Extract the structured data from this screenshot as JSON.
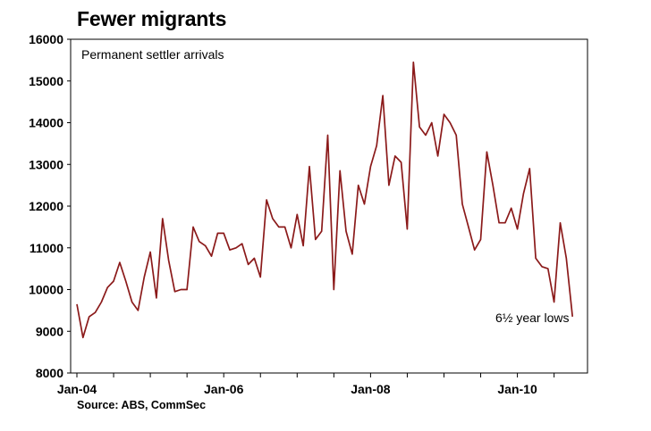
{
  "chart_data": {
    "type": "line",
    "title": "Fewer migrants",
    "subtitle": "Permanent settler arrivals",
    "annotation": "6½ year lows",
    "source": "Source: ABS, CommSec",
    "xlabel": "",
    "ylabel": "",
    "ylim": [
      8000,
      16000
    ],
    "yticks": [
      8000,
      9000,
      10000,
      11000,
      12000,
      13000,
      14000,
      15000,
      16000
    ],
    "xticks": [
      "Jan-04",
      "Jan-06",
      "Jan-08",
      "Jan-10"
    ],
    "xrange": [
      "2004-01",
      "2010-11"
    ],
    "grid": false,
    "line_color": "#8b1a1a",
    "series": [
      {
        "x": [
          "2004-01",
          "2004-02",
          "2004-03",
          "2004-04",
          "2004-05",
          "2004-06",
          "2004-07",
          "2004-08",
          "2004-09",
          "2004-10",
          "2004-11",
          "2004-12",
          "2005-01",
          "2005-02",
          "2005-03",
          "2005-04",
          "2005-05",
          "2005-06",
          "2005-07",
          "2005-08",
          "2005-09",
          "2005-10",
          "2005-11",
          "2005-12",
          "2006-01",
          "2006-02",
          "2006-03",
          "2006-04",
          "2006-05",
          "2006-06",
          "2006-07",
          "2006-08",
          "2006-09",
          "2006-10",
          "2006-11",
          "2006-12",
          "2007-01",
          "2007-02",
          "2007-03",
          "2007-04",
          "2007-05",
          "2007-06",
          "2007-07",
          "2007-08",
          "2007-09",
          "2007-10",
          "2007-11",
          "2007-12",
          "2008-01",
          "2008-02",
          "2008-03",
          "2008-04",
          "2008-05",
          "2008-06",
          "2008-07",
          "2008-08",
          "2008-09",
          "2008-10",
          "2008-11",
          "2008-12",
          "2009-01",
          "2009-02",
          "2009-03",
          "2009-04",
          "2009-05",
          "2009-06",
          "2009-07",
          "2009-08",
          "2009-09",
          "2009-10",
          "2009-11",
          "2009-12",
          "2010-01",
          "2010-02",
          "2010-03",
          "2010-04",
          "2010-05",
          "2010-06",
          "2010-07",
          "2010-08",
          "2010-09",
          "2010-10",
          "2010-11"
        ],
        "values": [
          9650,
          8850,
          9350,
          9450,
          9700,
          10050,
          10200,
          10650,
          10200,
          9700,
          9500,
          10300,
          10900,
          9800,
          11700,
          10700,
          9950,
          10000,
          10000,
          11500,
          11150,
          11050,
          10800,
          11350,
          11350,
          10950,
          11000,
          11100,
          10600,
          10750,
          10300,
          12150,
          11700,
          11500,
          11500,
          11000,
          11800,
          11050,
          12950,
          11200,
          11400,
          13700,
          10000,
          12850,
          11400,
          10850,
          12500,
          12050,
          12950,
          13450,
          14650,
          12500,
          13200,
          13050,
          11450,
          15450,
          13900,
          13700,
          14000,
          13200,
          14200,
          14000,
          13700,
          12050,
          11500,
          10950,
          11200,
          13300,
          12500,
          11600,
          11600,
          11950,
          11450,
          12300,
          12900,
          10750,
          10550,
          10500,
          9700,
          11600,
          10750,
          9350,
          null
        ]
      }
    ]
  }
}
